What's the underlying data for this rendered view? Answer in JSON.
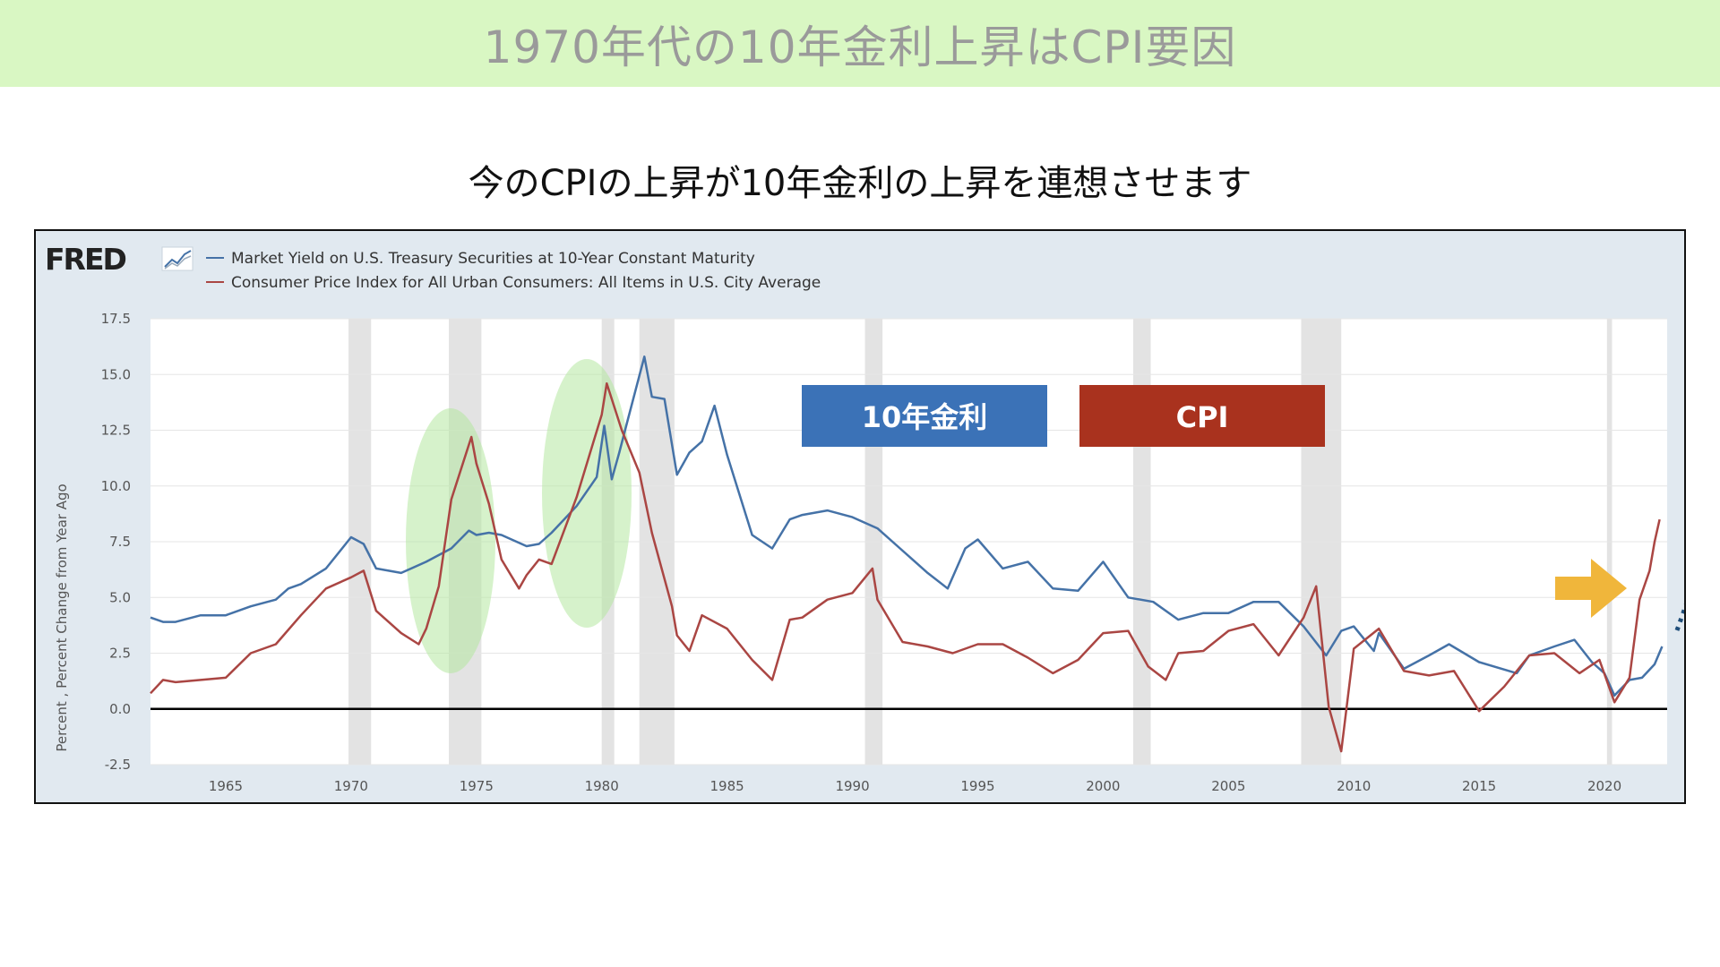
{
  "header": {
    "title": "1970年代の10年金利上昇はCPI要因",
    "subtitle": "今のCPIの上昇が10年金利の上昇を連想させます"
  },
  "chart_data": {
    "type": "line",
    "brand": "FRED",
    "ylabel": "Percent , Percent Change from Year Ago",
    "ylim": [
      -2.5,
      17.5
    ],
    "xlim": [
      1962,
      2022.5
    ],
    "y_ticks": [
      "17.5",
      "15.0",
      "12.5",
      "10.0",
      "7.5",
      "5.0",
      "2.5",
      "0.0",
      "-2.5"
    ],
    "x_ticks": [
      "1965",
      "1970",
      "1975",
      "1980",
      "1985",
      "1990",
      "1995",
      "2000",
      "2005",
      "2010",
      "2015",
      "2020"
    ],
    "grid": true,
    "legend_position": "top-left",
    "series": [
      {
        "name": "Market Yield on U.S. Treasury Securities at 10-Year Constant Maturity",
        "color": "#4572a7",
        "points": [
          [
            1962.0,
            4.1
          ],
          [
            1962.5,
            3.9
          ],
          [
            1963.0,
            3.9
          ],
          [
            1964.0,
            4.2
          ],
          [
            1965.0,
            4.2
          ],
          [
            1966.0,
            4.6
          ],
          [
            1967.0,
            4.9
          ],
          [
            1967.5,
            5.4
          ],
          [
            1968.0,
            5.6
          ],
          [
            1969.0,
            6.3
          ],
          [
            1970.0,
            7.7
          ],
          [
            1970.5,
            7.4
          ],
          [
            1971.0,
            6.3
          ],
          [
            1971.5,
            6.2
          ],
          [
            1972.0,
            6.1
          ],
          [
            1973.0,
            6.6
          ],
          [
            1974.0,
            7.2
          ],
          [
            1974.7,
            8.0
          ],
          [
            1975.0,
            7.8
          ],
          [
            1975.5,
            7.9
          ],
          [
            1976.0,
            7.8
          ],
          [
            1977.0,
            7.3
          ],
          [
            1977.5,
            7.4
          ],
          [
            1978.0,
            7.9
          ],
          [
            1979.0,
            9.1
          ],
          [
            1979.8,
            10.4
          ],
          [
            1980.1,
            12.7
          ],
          [
            1980.4,
            10.3
          ],
          [
            1980.7,
            11.5
          ],
          [
            1981.0,
            12.8
          ],
          [
            1981.7,
            15.8
          ],
          [
            1982.0,
            14.0
          ],
          [
            1982.5,
            13.9
          ],
          [
            1983.0,
            10.5
          ],
          [
            1983.5,
            11.5
          ],
          [
            1984.0,
            12.0
          ],
          [
            1984.5,
            13.6
          ],
          [
            1985.0,
            11.4
          ],
          [
            1986.0,
            7.8
          ],
          [
            1986.8,
            7.2
          ],
          [
            1987.5,
            8.5
          ],
          [
            1988.0,
            8.7
          ],
          [
            1989.0,
            8.9
          ],
          [
            1990.0,
            8.6
          ],
          [
            1991.0,
            8.1
          ],
          [
            1992.0,
            7.1
          ],
          [
            1993.0,
            6.1
          ],
          [
            1993.8,
            5.4
          ],
          [
            1994.5,
            7.2
          ],
          [
            1995.0,
            7.6
          ],
          [
            1996.0,
            6.3
          ],
          [
            1997.0,
            6.6
          ],
          [
            1998.0,
            5.4
          ],
          [
            1999.0,
            5.3
          ],
          [
            2000.0,
            6.6
          ],
          [
            2001.0,
            5.0
          ],
          [
            2002.0,
            4.8
          ],
          [
            2003.0,
            4.0
          ],
          [
            2004.0,
            4.3
          ],
          [
            2005.0,
            4.3
          ],
          [
            2006.0,
            4.8
          ],
          [
            2007.0,
            4.8
          ],
          [
            2008.0,
            3.7
          ],
          [
            2008.9,
            2.4
          ],
          [
            2009.5,
            3.5
          ],
          [
            2010.0,
            3.7
          ],
          [
            2010.8,
            2.6
          ],
          [
            2011.0,
            3.4
          ],
          [
            2012.0,
            1.8
          ],
          [
            2013.0,
            2.4
          ],
          [
            2013.8,
            2.9
          ],
          [
            2015.0,
            2.1
          ],
          [
            2016.5,
            1.6
          ],
          [
            2017.0,
            2.4
          ],
          [
            2018.0,
            2.8
          ],
          [
            2018.8,
            3.1
          ],
          [
            2019.5,
            2.1
          ],
          [
            2020.0,
            1.6
          ],
          [
            2020.4,
            0.6
          ],
          [
            2021.0,
            1.3
          ],
          [
            2021.5,
            1.4
          ],
          [
            2022.0,
            2.0
          ],
          [
            2022.3,
            2.8
          ]
        ]
      },
      {
        "name": "Consumer Price Index for All Urban Consumers: All Items in U.S. City Average",
        "color": "#aa4643",
        "points": [
          [
            1962.0,
            0.7
          ],
          [
            1962.5,
            1.3
          ],
          [
            1963.0,
            1.2
          ],
          [
            1964.0,
            1.3
          ],
          [
            1965.0,
            1.4
          ],
          [
            1966.0,
            2.5
          ],
          [
            1967.0,
            2.9
          ],
          [
            1968.0,
            4.2
          ],
          [
            1969.0,
            5.4
          ],
          [
            1970.0,
            5.9
          ],
          [
            1970.5,
            6.2
          ],
          [
            1971.0,
            4.4
          ],
          [
            1972.0,
            3.4
          ],
          [
            1972.7,
            2.9
          ],
          [
            1973.0,
            3.6
          ],
          [
            1973.5,
            5.5
          ],
          [
            1974.0,
            9.4
          ],
          [
            1974.8,
            12.2
          ],
          [
            1975.0,
            11.0
          ],
          [
            1975.5,
            9.2
          ],
          [
            1976.0,
            6.7
          ],
          [
            1976.7,
            5.4
          ],
          [
            1977.0,
            6.0
          ],
          [
            1977.5,
            6.7
          ],
          [
            1978.0,
            6.5
          ],
          [
            1979.0,
            9.5
          ],
          [
            1980.0,
            13.2
          ],
          [
            1980.2,
            14.6
          ],
          [
            1980.8,
            12.5
          ],
          [
            1981.5,
            10.6
          ],
          [
            1982.0,
            7.9
          ],
          [
            1982.8,
            4.6
          ],
          [
            1983.0,
            3.3
          ],
          [
            1983.5,
            2.6
          ],
          [
            1984.0,
            4.2
          ],
          [
            1985.0,
            3.6
          ],
          [
            1986.0,
            2.2
          ],
          [
            1986.8,
            1.3
          ],
          [
            1987.5,
            4.0
          ],
          [
            1988.0,
            4.1
          ],
          [
            1989.0,
            4.9
          ],
          [
            1990.0,
            5.2
          ],
          [
            1990.8,
            6.3
          ],
          [
            1991.0,
            4.9
          ],
          [
            1992.0,
            3.0
          ],
          [
            1993.0,
            2.8
          ],
          [
            1994.0,
            2.5
          ],
          [
            1995.0,
            2.9
          ],
          [
            1996.0,
            2.9
          ],
          [
            1997.0,
            2.3
          ],
          [
            1998.0,
            1.6
          ],
          [
            1999.0,
            2.2
          ],
          [
            2000.0,
            3.4
          ],
          [
            2001.0,
            3.5
          ],
          [
            2001.8,
            1.9
          ],
          [
            2002.5,
            1.3
          ],
          [
            2003.0,
            2.5
          ],
          [
            2004.0,
            2.6
          ],
          [
            2005.0,
            3.5
          ],
          [
            2006.0,
            3.8
          ],
          [
            2007.0,
            2.4
          ],
          [
            2008.0,
            4.1
          ],
          [
            2008.5,
            5.5
          ],
          [
            2009.0,
            0.1
          ],
          [
            2009.5,
            -1.9
          ],
          [
            2010.0,
            2.7
          ],
          [
            2011.0,
            3.6
          ],
          [
            2012.0,
            1.7
          ],
          [
            2013.0,
            1.5
          ],
          [
            2014.0,
            1.7
          ],
          [
            2015.0,
            -0.1
          ],
          [
            2016.0,
            1.0
          ],
          [
            2017.0,
            2.4
          ],
          [
            2018.0,
            2.5
          ],
          [
            2019.0,
            1.6
          ],
          [
            2019.8,
            2.2
          ],
          [
            2020.4,
            0.3
          ],
          [
            2021.0,
            1.4
          ],
          [
            2021.4,
            4.9
          ],
          [
            2021.8,
            6.2
          ],
          [
            2022.0,
            7.5
          ],
          [
            2022.2,
            8.5
          ]
        ]
      }
    ],
    "recessions": [
      [
        1969.9,
        1970.8
      ],
      [
        1973.9,
        1975.2
      ],
      [
        1980.0,
        1980.5
      ],
      [
        1981.5,
        1982.9
      ],
      [
        1990.5,
        1991.2
      ],
      [
        2001.2,
        2001.9
      ],
      [
        2007.9,
        2009.5
      ],
      [
        2020.1,
        2020.3
      ]
    ],
    "annotations": {
      "label_10y": {
        "text": "10年金利",
        "color": "#3b72b7"
      },
      "label_cpi": {
        "text": "CPI",
        "color": "#a9321e"
      },
      "highlight_color": "#b5e8a0",
      "arrow_color": "#f0b63b",
      "trend_arrow_color": "#1f4e7a"
    }
  }
}
